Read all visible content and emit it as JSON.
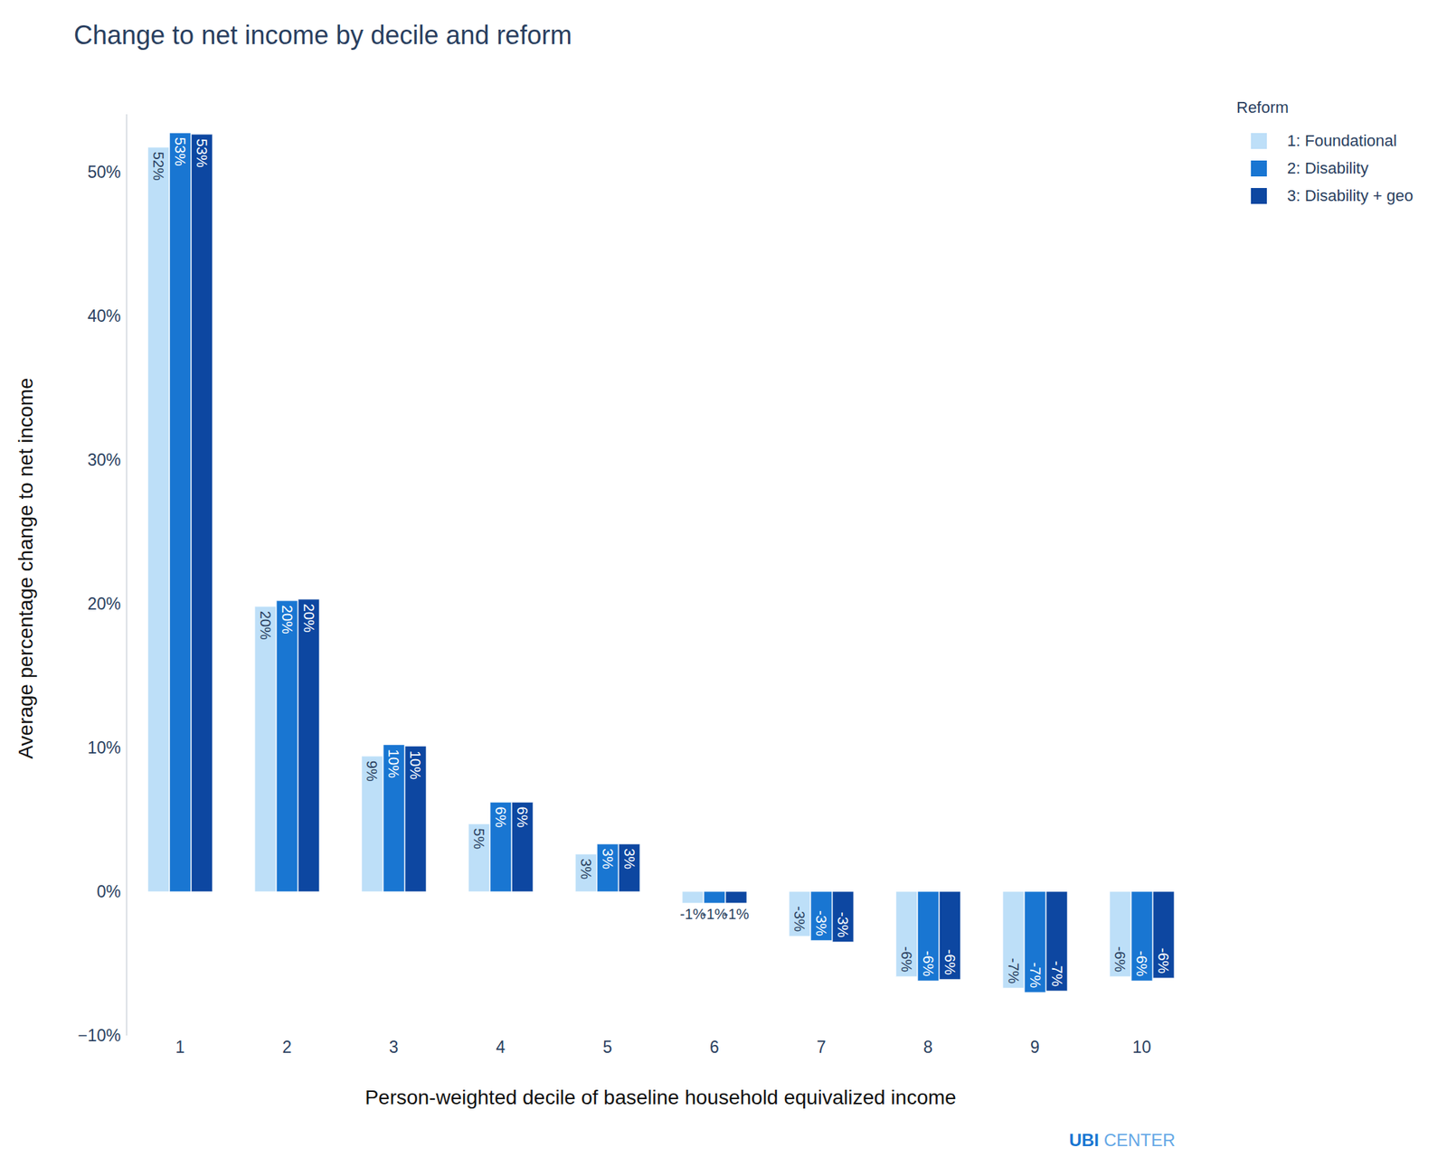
{
  "chart_data": {
    "type": "bar",
    "title": "Change to net income by decile and reform",
    "x_label": "Person-weighted decile of baseline household equivalized income",
    "y_label": "Average percentage change to net income",
    "legend_title": "Reform",
    "legend": "top-right",
    "watermark": "UBI CENTER",
    "grid": false,
    "data_labels": true,
    "categories": [
      "1",
      "2",
      "3",
      "4",
      "5",
      "6",
      "7",
      "8",
      "9",
      "10"
    ],
    "ylim": [
      -10,
      54
    ],
    "yticks": [
      {
        "value": -10,
        "label": "−10%"
      },
      {
        "value": 0,
        "label": "0%"
      },
      {
        "value": 10,
        "label": "10%"
      },
      {
        "value": 20,
        "label": "20%"
      },
      {
        "value": 30,
        "label": "30%"
      },
      {
        "value": 40,
        "label": "40%"
      },
      {
        "value": 50,
        "label": "50%"
      }
    ],
    "series": [
      {
        "name": "1: Foundational",
        "color": "#bddff8",
        "values": [
          51.7,
          19.8,
          9.4,
          4.7,
          2.6,
          -0.8,
          -3.1,
          -5.9,
          -6.7,
          -5.9
        ],
        "value_labels": [
          "52%",
          "20%",
          "9%",
          "5%",
          "3%",
          "-1%",
          "-3%",
          "-6%",
          "-7%",
          "-6%"
        ]
      },
      {
        "name": "2: Disability",
        "color": "#1976d2",
        "values": [
          52.7,
          20.2,
          10.2,
          6.2,
          3.3,
          -0.8,
          -3.4,
          -6.2,
          -7.0,
          -6.2
        ],
        "value_labels": [
          "53%",
          "20%",
          "10%",
          "6%",
          "3%",
          "-1%",
          "-3%",
          "-6%",
          "-7%",
          "-6%"
        ]
      },
      {
        "name": "3: Disability + geo",
        "color": "#0d47a1",
        "values": [
          52.6,
          20.3,
          10.1,
          6.2,
          3.3,
          -0.8,
          -3.5,
          -6.1,
          -6.9,
          -6.0
        ],
        "value_labels": [
          "53%",
          "20%",
          "10%",
          "6%",
          "3%",
          "-1%",
          "-3%",
          "-6%",
          "-7%",
          "-6%"
        ]
      }
    ]
  }
}
